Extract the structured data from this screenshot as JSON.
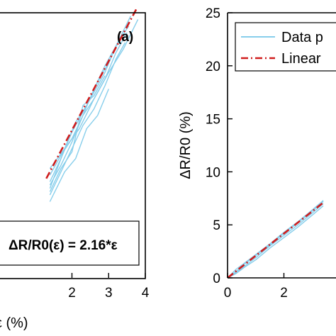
{
  "colors": {
    "data": "#87CEEB",
    "fit": "#D01C1C",
    "axis": "#000000"
  },
  "chart_data": [
    {
      "type": "line",
      "panel_label": "(a)",
      "xlabel": "ε (%)",
      "ylabel": "",
      "xlim": [
        0,
        4
      ],
      "ylim": [
        0,
        8
      ],
      "x_ticks": [
        2,
        3,
        4
      ],
      "x_tick_labels": [
        "2",
        "3",
        "4"
      ],
      "annotation": "ΔR/R0(ε) = 2.16*ε",
      "series": [
        {
          "role": "data",
          "x": [
            1.4,
            1.7,
            2.0,
            2.3,
            2.6,
            2.9,
            3.2,
            3.6
          ],
          "y": [
            2.9,
            3.6,
            4.4,
            5.0,
            5.6,
            6.2,
            7.0,
            7.9
          ]
        },
        {
          "role": "data",
          "x": [
            1.4,
            1.7,
            2.0,
            2.3,
            2.6,
            2.9,
            3.2,
            3.5
          ],
          "y": [
            2.8,
            3.4,
            4.1,
            4.9,
            5.4,
            6.0,
            6.8,
            7.4
          ]
        },
        {
          "role": "data",
          "x": [
            1.4,
            1.8,
            2.1,
            2.4,
            2.7,
            3.0,
            3.3,
            3.55
          ],
          "y": [
            2.7,
            3.9,
            4.7,
            5.2,
            5.9,
            6.5,
            7.2,
            7.6
          ]
        },
        {
          "role": "data",
          "x": [
            1.4,
            1.7,
            2.0,
            2.3,
            2.6,
            2.9,
            3.2,
            3.45
          ],
          "y": [
            2.5,
            3.2,
            3.9,
            4.6,
            5.1,
            5.8,
            6.6,
            7.1
          ]
        },
        {
          "role": "data",
          "x": [
            1.4,
            1.8,
            2.1,
            2.4,
            2.7,
            3.0
          ],
          "y": [
            2.3,
            3.2,
            3.6,
            4.5,
            4.9,
            5.7
          ]
        },
        {
          "role": "data",
          "x": [
            1.4,
            1.7,
            2.0,
            2.3,
            2.6,
            2.9,
            3.2
          ],
          "y": [
            3.1,
            3.7,
            4.2,
            4.9,
            5.7,
            6.4,
            7.0
          ]
        },
        {
          "role": "data",
          "x": [
            1.4,
            1.7,
            2.0,
            2.3,
            2.6,
            2.9
          ],
          "y": [
            2.6,
            3.3,
            3.8,
            5.2,
            5.5,
            6.1
          ]
        },
        {
          "role": "data",
          "x": [
            1.4,
            1.8,
            2.2,
            2.6,
            3.0,
            3.4,
            3.8
          ],
          "y": [
            3.3,
            3.9,
            4.5,
            5.4,
            6.2,
            6.9,
            7.8
          ]
        },
        {
          "role": "fit",
          "x": [
            1.3,
            3.75
          ],
          "y": [
            3.0,
            8.1
          ]
        }
      ]
    },
    {
      "type": "line",
      "panel_label": "",
      "xlabel": "",
      "ylabel": "ΔR/R0 (%)",
      "xlim": [
        0,
        4
      ],
      "ylim": [
        0,
        25
      ],
      "x_ticks": [
        0,
        2
      ],
      "x_tick_labels": [
        "0",
        "2"
      ],
      "y_ticks": [
        0,
        5,
        10,
        15,
        20,
        25
      ],
      "y_tick_labels": [
        "0",
        "5",
        "10",
        "15",
        "20",
        "25"
      ],
      "legend": {
        "placement": "top",
        "entries": [
          "Data p",
          "Linear"
        ]
      },
      "series": [
        {
          "role": "data",
          "x": [
            0.0,
            0.3,
            0.6,
            1.0,
            1.5,
            2.0,
            2.5,
            3.0,
            3.4
          ],
          "y": [
            0.0,
            0.5,
            1.1,
            1.9,
            3.0,
            4.0,
            5.0,
            6.1,
            7.0
          ]
        },
        {
          "role": "data",
          "x": [
            0.0,
            0.3,
            0.6,
            1.0,
            1.5,
            2.0,
            2.5,
            3.0,
            3.4
          ],
          "y": [
            0.0,
            0.8,
            1.4,
            2.2,
            3.2,
            4.3,
            5.3,
            6.4,
            7.3
          ]
        },
        {
          "role": "data",
          "x": [
            0.0,
            0.3,
            0.6,
            1.0,
            1.5,
            2.0,
            2.5,
            3.0,
            3.4
          ],
          "y": [
            0.0,
            0.4,
            1.0,
            1.7,
            2.8,
            3.8,
            4.8,
            5.9,
            6.8
          ]
        },
        {
          "role": "data",
          "x": [
            0.0,
            0.3,
            0.6,
            1.0,
            1.5,
            2.0,
            2.5,
            3.0,
            3.4
          ],
          "y": [
            0.0,
            0.6,
            1.3,
            2.1,
            3.1,
            4.2,
            5.2,
            6.3,
            7.2
          ]
        },
        {
          "role": "fit",
          "x": [
            0.0,
            3.4
          ],
          "y": [
            0.0,
            7.1
          ]
        }
      ]
    }
  ]
}
